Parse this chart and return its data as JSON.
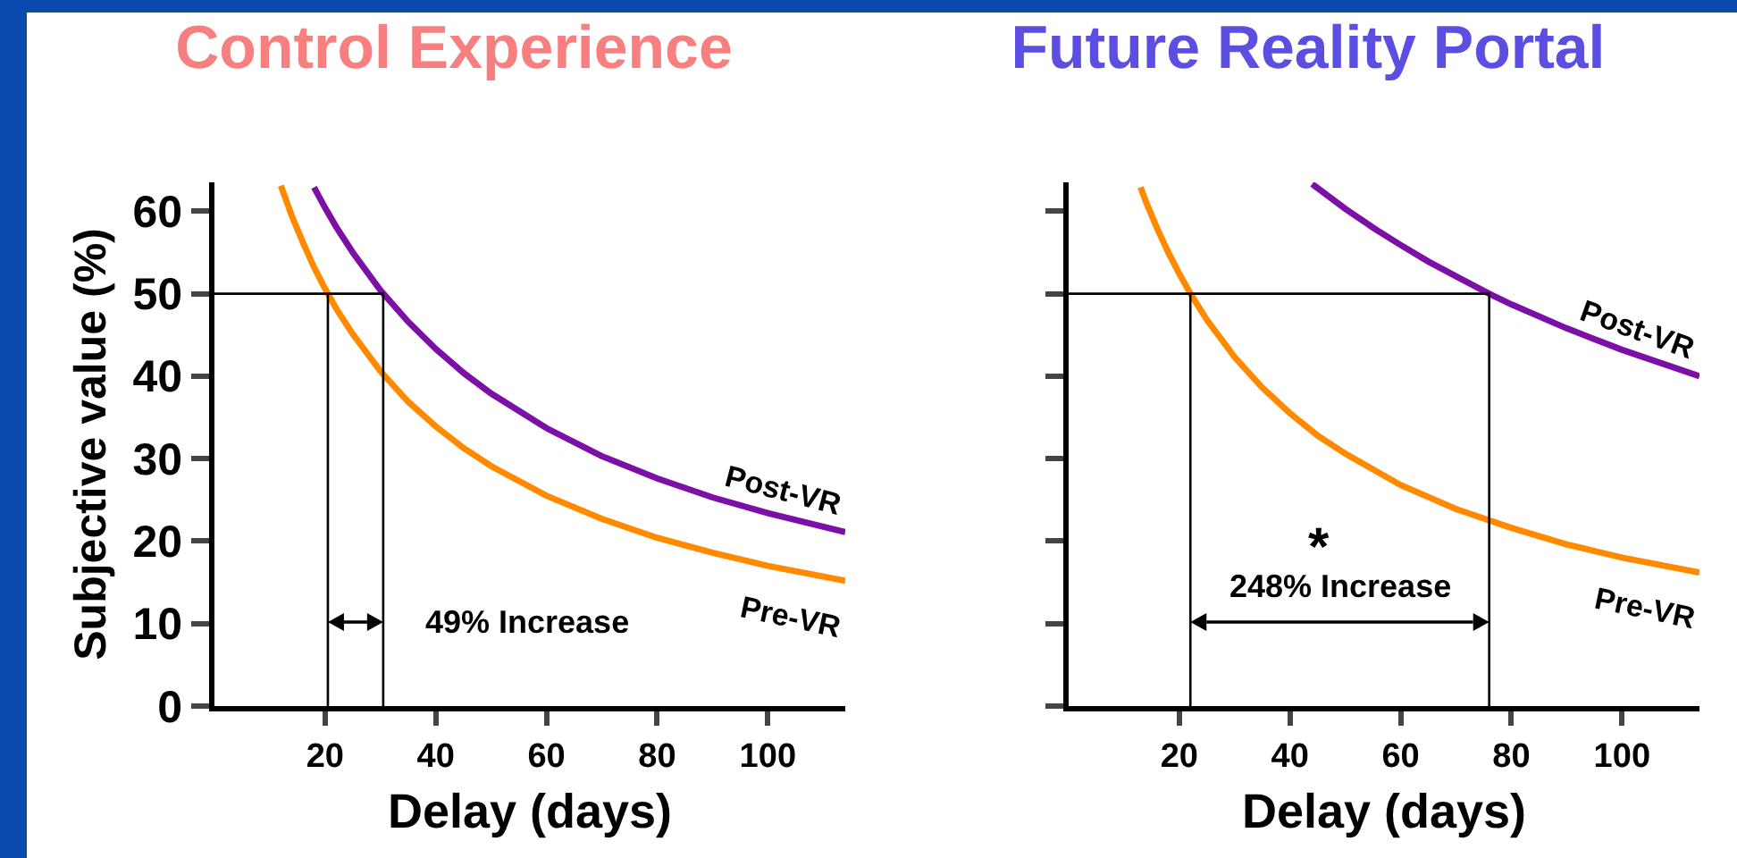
{
  "chart_data": [
    {
      "type": "line",
      "title": "Control Experience",
      "xlabel": "Delay (days)",
      "ylabel": "Subjective value (%)",
      "xlim": [
        0,
        114
      ],
      "ylim": [
        0,
        63.5
      ],
      "xticks": [
        20,
        40,
        60,
        80,
        100
      ],
      "yticks": [
        0,
        10,
        20,
        30,
        40,
        50,
        60
      ],
      "grid": false,
      "legend": false,
      "marker": "none",
      "line_style": "solid",
      "series": [
        {
          "name": "Post-VR",
          "color": "#7b0fa6",
          "x": [
            18,
            20,
            22,
            25,
            30,
            35,
            40,
            45,
            50,
            60,
            70,
            80,
            90,
            100,
            114
          ],
          "values": [
            62.9,
            60.4,
            58.1,
            55.0,
            50.4,
            46.6,
            43.3,
            40.4,
            37.9,
            33.7,
            30.3,
            27.6,
            25.3,
            23.4,
            21.1
          ]
        },
        {
          "name": "Pre-VR",
          "color": "#ff8a00",
          "x": [
            12,
            14,
            16,
            18,
            20,
            22,
            25,
            30,
            35,
            40,
            45,
            50,
            60,
            70,
            80,
            90,
            100,
            114
          ],
          "values": [
            63.1,
            59.4,
            56.2,
            53.2,
            50.6,
            48.2,
            45.1,
            40.6,
            36.9,
            33.9,
            31.3,
            29.1,
            25.5,
            22.7,
            20.4,
            18.6,
            17.0,
            15.2
          ]
        },
        {
          "type": "line",
          "color": "#000000",
          "x": [
            0,
            30.5,
            30.5
          ],
          "values": [
            50,
            50,
            0
          ]
        },
        {
          "type": "line",
          "color": "#000000",
          "x": [
            20.5,
            20.5
          ],
          "values": [
            50,
            0
          ]
        }
      ],
      "annotations": [
        "49% Increase"
      ]
    },
    {
      "type": "line",
      "title": "Future Reality Portal",
      "xlabel": "Delay (days)",
      "xlim": [
        0,
        114
      ],
      "ylim": [
        0,
        63.5
      ],
      "xticks": [
        20,
        40,
        60,
        80,
        100
      ],
      "yticks": [
        {
          "value": 0,
          "label": null
        },
        {
          "value": 10,
          "label": null
        },
        {
          "value": 20,
          "label": null
        },
        {
          "value": 30,
          "label": null
        },
        {
          "value": 40,
          "label": null
        },
        {
          "value": 50,
          "label": null
        },
        {
          "value": 60,
          "label": null
        }
      ],
      "tick_labels": "x",
      "grid": false,
      "legend": false,
      "marker": "none",
      "line_style": "solid",
      "series": [
        {
          "name": "Post-VR",
          "color": "#7b0fa6",
          "x": [
            44,
            50,
            55,
            60,
            65,
            70,
            76,
            80,
            90,
            100,
            114
          ],
          "values": [
            63.3,
            60.3,
            58.0,
            55.9,
            53.9,
            52.1,
            50.0,
            48.7,
            45.8,
            43.2,
            40.0
          ]
        },
        {
          "name": "Pre-VR",
          "color": "#ff8a00",
          "x": [
            13,
            14,
            16,
            18,
            20,
            22,
            25,
            30,
            35,
            40,
            45,
            50,
            60,
            70,
            80,
            90,
            100,
            114
          ],
          "values": [
            62.9,
            61.1,
            57.9,
            55.0,
            52.4,
            50.0,
            46.8,
            42.3,
            38.6,
            35.5,
            32.8,
            30.6,
            26.8,
            23.9,
            21.6,
            19.6,
            18.0,
            16.2
          ]
        },
        {
          "type": "line",
          "color": "#000000",
          "x": [
            0,
            76,
            76
          ],
          "values": [
            50,
            50,
            0
          ]
        },
        {
          "type": "line",
          "color": "#000000",
          "x": [
            22,
            22
          ],
          "values": [
            50,
            0
          ]
        }
      ],
      "annotations": [
        "248% Increase",
        "*"
      ]
    }
  ]
}
